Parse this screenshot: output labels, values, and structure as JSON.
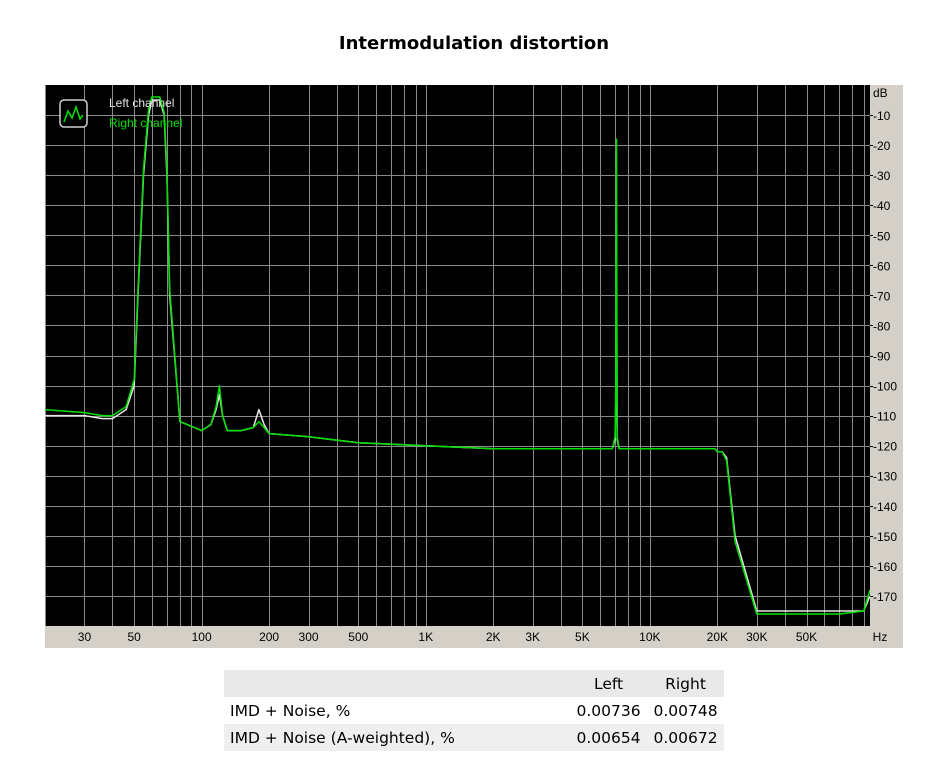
{
  "title": "Intermodulation distortion",
  "chart_data": {
    "type": "line",
    "x_scale": "log",
    "xlim": [
      20,
      96000
    ],
    "ylim": [
      -180,
      0
    ],
    "x_unit": "Hz",
    "y_unit": "dB",
    "x_ticks": [
      {
        "v": 30,
        "label": "30"
      },
      {
        "v": 50,
        "label": "50"
      },
      {
        "v": 100,
        "label": "100"
      },
      {
        "v": 200,
        "label": "200"
      },
      {
        "v": 300,
        "label": "300"
      },
      {
        "v": 500,
        "label": "500"
      },
      {
        "v": 1000,
        "label": "1K"
      },
      {
        "v": 2000,
        "label": "2K"
      },
      {
        "v": 3000,
        "label": "3K"
      },
      {
        "v": 5000,
        "label": "5K"
      },
      {
        "v": 10000,
        "label": "10K"
      },
      {
        "v": 20000,
        "label": "20K"
      },
      {
        "v": 30000,
        "label": "30K"
      },
      {
        "v": 50000,
        "label": "50K"
      }
    ],
    "y_ticks": [
      -10,
      -20,
      -30,
      -40,
      -50,
      -60,
      -70,
      -80,
      -90,
      -100,
      -110,
      -120,
      -130,
      -140,
      -150,
      -160,
      -170
    ],
    "grid": true,
    "legend_position": "top-left",
    "background": "#000000",
    "series": [
      {
        "name": "Left channel",
        "color": "#e6e6e6",
        "x": [
          20,
          30,
          36,
          40,
          46,
          50,
          52,
          55,
          58,
          60,
          62,
          65,
          68,
          70,
          72,
          80,
          100,
          110,
          116,
          120,
          124,
          130,
          150,
          170,
          180,
          190,
          200,
          300,
          500,
          1000,
          2000,
          3000,
          5000,
          6800,
          7000,
          7050,
          7100,
          7150,
          7300,
          7500,
          10000,
          15000,
          19500,
          20000,
          21000,
          22000,
          24000,
          30000,
          40000,
          50000,
          70000,
          90000,
          96000
        ],
        "y": [
          -110,
          -110,
          -111,
          -111,
          -108,
          -100,
          -70,
          -30,
          -10,
          -5,
          -5,
          -5,
          -10,
          -30,
          -70,
          -112,
          -115,
          -113,
          -108,
          -103,
          -110,
          -115,
          -115,
          -114,
          -108,
          -113,
          -116,
          -117,
          -119,
          -120,
          -121,
          -121,
          -121,
          -121,
          -118,
          -105,
          -60,
          -118,
          -121,
          -121,
          -121,
          -121,
          -121,
          -122,
          -122,
          -124,
          -150,
          -175,
          -175,
          -175,
          -175,
          -175,
          -170
        ]
      },
      {
        "name": "Right channel",
        "color": "#00e000",
        "x": [
          20,
          30,
          36,
          40,
          46,
          50,
          52,
          55,
          58,
          60,
          62,
          65,
          68,
          70,
          72,
          80,
          100,
          110,
          116,
          120,
          124,
          130,
          150,
          170,
          180,
          190,
          200,
          300,
          500,
          1000,
          2000,
          3000,
          5000,
          6800,
          7000,
          7050,
          7100,
          7150,
          7300,
          7500,
          10000,
          15000,
          19500,
          20000,
          21000,
          22000,
          24000,
          30000,
          40000,
          50000,
          70000,
          90000,
          96000
        ],
        "y": [
          -108,
          -109,
          -110,
          -110,
          -107,
          -98,
          -68,
          -28,
          -8,
          -4,
          -4,
          -4,
          -9,
          -28,
          -68,
          -112,
          -115,
          -113,
          -107,
          -100,
          -110,
          -115,
          -115,
          -114,
          -112,
          -114,
          -116,
          -117,
          -119,
          -120,
          -121,
          -121,
          -121,
          -121,
          -117,
          -100,
          -18,
          -117,
          -121,
          -121,
          -121,
          -121,
          -121,
          -122,
          -122,
          -125,
          -152,
          -176,
          -176,
          -176,
          -176,
          -175,
          -168
        ]
      }
    ]
  },
  "table": {
    "headers": [
      "",
      "Left",
      "Right"
    ],
    "rows": [
      {
        "label": "IMD + Noise, %",
        "left": "0.00736",
        "right": "0.00748"
      },
      {
        "label": "IMD + Noise (A-weighted), %",
        "left": "0.00654",
        "right": "0.00672"
      }
    ]
  }
}
